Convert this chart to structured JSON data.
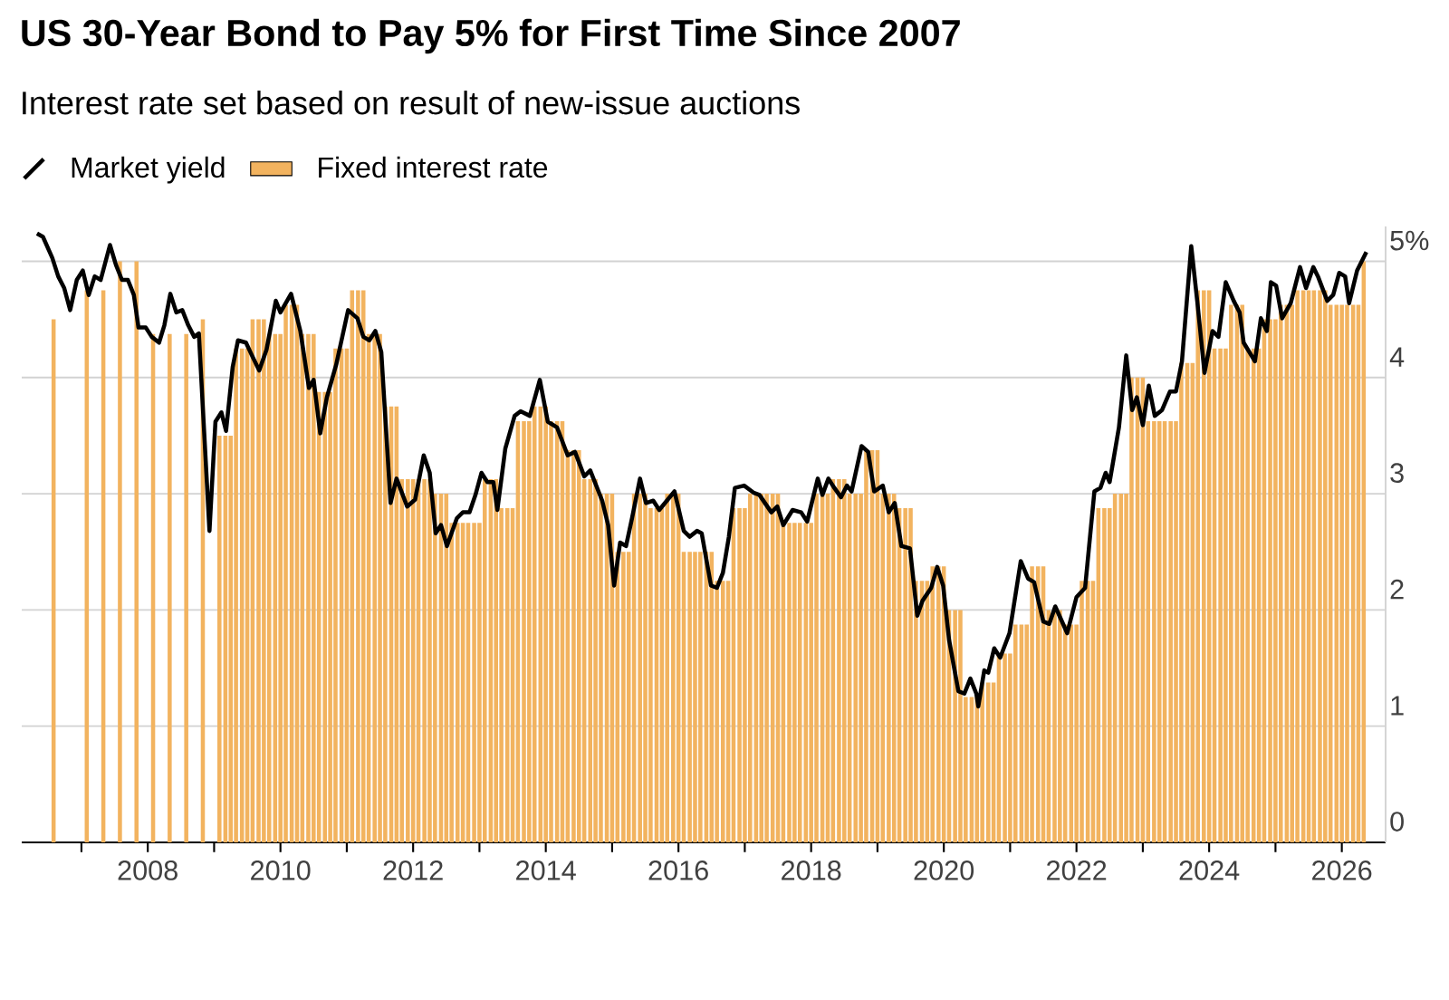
{
  "chart_data": {
    "type": "bar",
    "title": "US 30-Year Bond to Pay 5% for First Time Since 2007",
    "subtitle": "Interest rate set based on result of new-issue auctions",
    "series": [
      {
        "name": "Fixed interest rate",
        "color": "#f2b35f",
        "x": [
          2006.58,
          2007.08,
          2007.33,
          2007.58,
          2007.83,
          2008.08,
          2008.33,
          2008.58,
          2008.83,
          2009.08,
          2009.17,
          2009.25,
          2009.33,
          2009.42,
          2009.5,
          2009.58,
          2009.67,
          2009.75,
          2009.83,
          2009.92,
          2010.0,
          2010.08,
          2010.17,
          2010.25,
          2010.33,
          2010.42,
          2010.5,
          2010.58,
          2010.67,
          2010.75,
          2010.83,
          2010.92,
          2011.0,
          2011.08,
          2011.17,
          2011.25,
          2011.33,
          2011.42,
          2011.5,
          2011.58,
          2011.67,
          2011.75,
          2011.83,
          2011.92,
          2012.0,
          2012.08,
          2012.17,
          2012.25,
          2012.33,
          2012.42,
          2012.5,
          2012.58,
          2012.67,
          2012.75,
          2012.83,
          2012.92,
          2013.0,
          2013.08,
          2013.17,
          2013.25,
          2013.33,
          2013.42,
          2013.5,
          2013.58,
          2013.67,
          2013.75,
          2013.83,
          2013.92,
          2014.0,
          2014.08,
          2014.17,
          2014.25,
          2014.33,
          2014.42,
          2014.5,
          2014.58,
          2014.67,
          2014.75,
          2014.83,
          2014.92,
          2015.0,
          2015.08,
          2015.17,
          2015.25,
          2015.33,
          2015.42,
          2015.5,
          2015.58,
          2015.67,
          2015.75,
          2015.83,
          2015.92,
          2016.0,
          2016.08,
          2016.17,
          2016.25,
          2016.33,
          2016.42,
          2016.5,
          2016.58,
          2016.67,
          2016.75,
          2016.83,
          2016.92,
          2017.0,
          2017.08,
          2017.17,
          2017.25,
          2017.33,
          2017.42,
          2017.5,
          2017.58,
          2017.67,
          2017.75,
          2017.83,
          2017.92,
          2018.0,
          2018.08,
          2018.17,
          2018.25,
          2018.33,
          2018.42,
          2018.5,
          2018.58,
          2018.67,
          2018.75,
          2018.83,
          2018.92,
          2019.0,
          2019.08,
          2019.17,
          2019.25,
          2019.33,
          2019.42,
          2019.5,
          2019.58,
          2019.67,
          2019.75,
          2019.83,
          2019.92,
          2020.0,
          2020.08,
          2020.17,
          2020.25,
          2020.33,
          2020.42,
          2020.5,
          2020.58,
          2020.67,
          2020.75,
          2020.83,
          2020.92,
          2021.0,
          2021.08,
          2021.17,
          2021.25,
          2021.33,
          2021.42,
          2021.5,
          2021.58,
          2021.67,
          2021.75,
          2021.83,
          2021.92,
          2022.0,
          2022.08,
          2022.17,
          2022.25,
          2022.33,
          2022.42,
          2022.5,
          2022.58,
          2022.67,
          2022.75,
          2022.83,
          2022.92,
          2023.0,
          2023.08,
          2023.17,
          2023.25,
          2023.33,
          2023.42,
          2023.5,
          2023.58,
          2023.67,
          2023.75,
          2023.83,
          2023.92,
          2024.0,
          2024.08,
          2024.17,
          2024.25,
          2024.33,
          2024.42,
          2024.5,
          2024.58,
          2024.67,
          2024.75,
          2024.83,
          2024.92,
          2025.0,
          2025.08,
          2025.17,
          2025.25,
          2025.33,
          2025.42,
          2025.5,
          2025.58,
          2025.67,
          2025.75,
          2025.83,
          2025.92,
          2026.0,
          2026.08,
          2026.17,
          2026.25,
          2026.33
        ],
        "values": [
          4.5,
          4.75,
          4.75,
          5,
          5,
          4.375,
          4.375,
          4.375,
          4.5,
          3.5,
          3.5,
          3.5,
          4.25,
          4.25,
          4.25,
          4.5,
          4.5,
          4.5,
          4.375,
          4.375,
          4.375,
          4.625,
          4.625,
          4.625,
          4.375,
          4.375,
          4.375,
          3.875,
          3.875,
          3.875,
          4.25,
          4.25,
          4.25,
          4.75,
          4.75,
          4.75,
          4.375,
          4.375,
          4.375,
          3.75,
          3.75,
          3.75,
          3.125,
          3.125,
          3.125,
          3.125,
          3.125,
          3.125,
          3,
          3,
          3,
          2.75,
          2.75,
          2.75,
          2.75,
          2.75,
          2.75,
          3.125,
          3.125,
          3.125,
          2.875,
          2.875,
          2.875,
          3.625,
          3.625,
          3.625,
          3.75,
          3.75,
          3.75,
          3.625,
          3.625,
          3.625,
          3.375,
          3.375,
          3.375,
          3.125,
          3.125,
          3.125,
          3,
          3,
          3,
          2.5,
          2.5,
          2.5,
          3,
          3,
          3,
          2.875,
          2.875,
          2.875,
          3,
          3,
          3,
          2.5,
          2.5,
          2.5,
          2.5,
          2.5,
          2.5,
          2.25,
          2.25,
          2.25,
          2.875,
          2.875,
          2.875,
          3,
          3,
          3,
          3,
          3,
          3,
          2.75,
          2.75,
          2.75,
          2.75,
          2.75,
          2.75,
          3,
          3,
          3,
          3.125,
          3.125,
          3.125,
          3,
          3,
          3,
          3.375,
          3.375,
          3.375,
          3,
          3,
          3,
          2.875,
          2.875,
          2.875,
          2.25,
          2.25,
          2.25,
          2.375,
          2.375,
          2.375,
          2,
          2,
          2,
          1.25,
          1.25,
          1.25,
          1.375,
          1.375,
          1.375,
          1.625,
          1.625,
          1.625,
          1.875,
          1.875,
          1.875,
          2.375,
          2.375,
          2.375,
          2,
          2,
          2,
          1.875,
          1.875,
          1.875,
          2.25,
          2.25,
          2.25,
          2.875,
          2.875,
          2.875,
          3,
          3,
          3,
          4,
          4,
          4,
          3.625,
          3.625,
          3.625,
          3.625,
          3.625,
          3.625,
          4.125,
          4.125,
          4.125,
          4.75,
          4.75,
          4.75,
          4.25,
          4.25,
          4.25,
          4.625,
          4.625,
          4.625,
          4.25,
          4.25,
          4.25,
          4.5,
          4.5,
          4.5,
          4.625,
          4.625,
          4.625,
          4.75,
          4.75,
          4.75,
          4.75,
          4.75,
          4.75,
          4.625,
          4.625,
          4.625,
          4.625,
          4.625,
          4.625,
          5
        ]
      },
      {
        "name": "Market yield",
        "type": "line",
        "color": "#000000",
        "x": [
          2006.33,
          2006.42,
          2006.56,
          2006.65,
          2006.74,
          2006.83,
          2006.93,
          2007.02,
          2007.11,
          2007.2,
          2007.29,
          2007.43,
          2007.52,
          2007.61,
          2007.7,
          2007.79,
          2007.86,
          2007.97,
          2008.06,
          2008.17,
          2008.25,
          2008.34,
          2008.43,
          2008.52,
          2008.61,
          2008.7,
          2008.77,
          2008.93,
          2009.02,
          2009.11,
          2009.18,
          2009.28,
          2009.36,
          2009.48,
          2009.57,
          2009.68,
          2009.79,
          2009.93,
          2010.0,
          2010.16,
          2010.3,
          2010.43,
          2010.5,
          2010.6,
          2010.7,
          2010.84,
          2011.02,
          2011.16,
          2011.25,
          2011.34,
          2011.43,
          2011.52,
          2011.66,
          2011.75,
          2011.91,
          2012.03,
          2012.16,
          2012.25,
          2012.34,
          2012.42,
          2012.51,
          2012.66,
          2012.75,
          2012.85,
          2012.94,
          2013.03,
          2013.12,
          2013.21,
          2013.27,
          2013.39,
          2013.53,
          2013.62,
          2013.76,
          2013.91,
          2014.03,
          2014.17,
          2014.33,
          2014.44,
          2014.58,
          2014.67,
          2014.85,
          2014.94,
          2015.03,
          2015.12,
          2015.21,
          2015.3,
          2015.42,
          2015.51,
          2015.62,
          2015.71,
          2015.94,
          2016.08,
          2016.17,
          2016.28,
          2016.35,
          2016.49,
          2016.58,
          2016.67,
          2016.76,
          2016.85,
          2016.99,
          2017.13,
          2017.22,
          2017.4,
          2017.49,
          2017.58,
          2017.72,
          2017.85,
          2017.94,
          2018.1,
          2018.17,
          2018.26,
          2018.35,
          2018.45,
          2018.54,
          2018.61,
          2018.76,
          2018.86,
          2018.95,
          2019.08,
          2019.17,
          2019.26,
          2019.36,
          2019.49,
          2019.6,
          2019.68,
          2019.81,
          2019.9,
          2019.99,
          2020.08,
          2020.22,
          2020.31,
          2020.4,
          2020.49,
          2020.52,
          2020.61,
          2020.67,
          2020.76,
          2020.85,
          2020.99,
          2021.16,
          2021.27,
          2021.36,
          2021.5,
          2021.59,
          2021.68,
          2021.86,
          2022.0,
          2022.13,
          2022.27,
          2022.36,
          2022.44,
          2022.5,
          2022.64,
          2022.75,
          2022.84,
          2022.91,
          2023.0,
          2023.09,
          2023.18,
          2023.29,
          2023.41,
          2023.5,
          2023.59,
          2023.73,
          2023.82,
          2023.93,
          2024.05,
          2024.14,
          2024.25,
          2024.37,
          2024.46,
          2024.52,
          2024.69,
          2024.78,
          2024.87,
          2024.93,
          2025.01,
          2025.1,
          2025.23,
          2025.37,
          2025.46,
          2025.57,
          2025.64,
          2025.78,
          2025.87,
          2025.96,
          2026.05,
          2026.11,
          2026.23,
          2026.37
        ],
        "values": [
          5.24,
          5.21,
          5.03,
          4.87,
          4.77,
          4.58,
          4.84,
          4.92,
          4.71,
          4.87,
          4.84,
          5.14,
          4.97,
          4.84,
          4.84,
          4.71,
          4.43,
          4.43,
          4.35,
          4.3,
          4.45,
          4.72,
          4.56,
          4.58,
          4.45,
          4.35,
          4.38,
          2.68,
          3.62,
          3.7,
          3.54,
          4.09,
          4.32,
          4.3,
          4.19,
          4.06,
          4.24,
          4.66,
          4.56,
          4.72,
          4.4,
          3.91,
          3.98,
          3.52,
          3.83,
          4.11,
          4.58,
          4.51,
          4.35,
          4.32,
          4.4,
          4.22,
          2.92,
          3.13,
          2.89,
          2.95,
          3.33,
          3.18,
          2.66,
          2.73,
          2.55,
          2.79,
          2.84,
          2.84,
          2.99,
          3.18,
          3.1,
          3.1,
          2.86,
          3.39,
          3.67,
          3.71,
          3.67,
          3.98,
          3.62,
          3.57,
          3.33,
          3.36,
          3.15,
          3.2,
          2.94,
          2.73,
          2.21,
          2.58,
          2.55,
          2.79,
          3.13,
          2.92,
          2.94,
          2.86,
          3.02,
          2.68,
          2.63,
          2.68,
          2.66,
          2.21,
          2.19,
          2.32,
          2.63,
          3.05,
          3.07,
          3.01,
          2.99,
          2.84,
          2.89,
          2.73,
          2.86,
          2.84,
          2.76,
          3.13,
          2.99,
          3.13,
          3.05,
          2.97,
          3.07,
          3.02,
          3.41,
          3.36,
          3.02,
          3.07,
          2.84,
          2.92,
          2.55,
          2.53,
          1.95,
          2.08,
          2.19,
          2.37,
          2.21,
          1.74,
          1.3,
          1.28,
          1.41,
          1.28,
          1.17,
          1.48,
          1.46,
          1.67,
          1.59,
          1.8,
          2.42,
          2.27,
          2.24,
          1.9,
          1.88,
          2.03,
          1.8,
          2.11,
          2.19,
          3.02,
          3.05,
          3.18,
          3.1,
          3.57,
          4.19,
          3.72,
          3.83,
          3.59,
          3.93,
          3.67,
          3.72,
          3.88,
          3.88,
          4.14,
          5.13,
          4.66,
          4.04,
          4.4,
          4.35,
          4.82,
          4.66,
          4.56,
          4.3,
          4.14,
          4.51,
          4.4,
          4.82,
          4.79,
          4.51,
          4.64,
          4.95,
          4.77,
          4.95,
          4.87,
          4.66,
          4.71,
          4.9,
          4.87,
          4.64,
          4.92,
          5.08
        ]
      }
    ],
    "xlim": [
      2006.1,
      2026.66
    ],
    "xticks": [
      {
        "value": 2007,
        "label": null
      },
      2008,
      {
        "value": 2009,
        "label": null
      },
      2010,
      {
        "value": 2011,
        "label": null
      },
      2012,
      {
        "value": 2013,
        "label": null
      },
      2014,
      {
        "value": 2015,
        "label": null
      },
      2016,
      {
        "value": 2017,
        "label": null
      },
      2018,
      {
        "value": 2019,
        "label": null
      },
      2020,
      {
        "value": 2021,
        "label": null
      },
      2022,
      {
        "value": 2023,
        "label": null
      },
      2024,
      {
        "value": 2025,
        "label": null
      },
      2026
    ],
    "ylim": [
      0,
      5.3
    ],
    "yticks": [
      0,
      1,
      2,
      3,
      4,
      {
        "value": 5,
        "label": "5%"
      }
    ],
    "grid": "y",
    "legend": "top left"
  }
}
